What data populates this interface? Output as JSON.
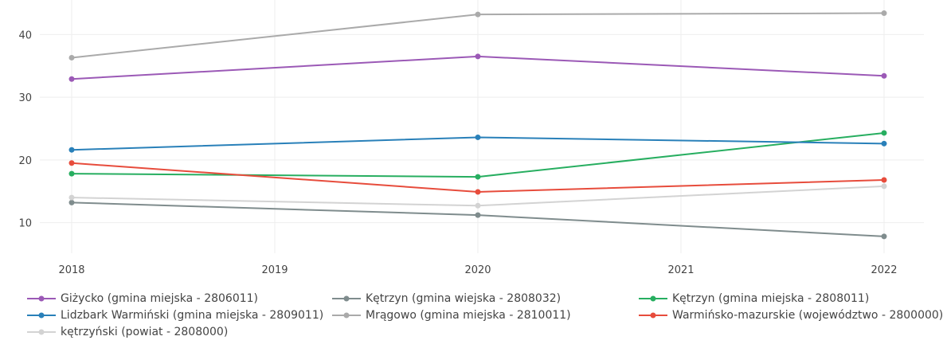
{
  "chart_data": {
    "type": "line",
    "title": "",
    "xlabel": "",
    "ylabel": "",
    "x_ticks": [
      "2018",
      "2019",
      "2020",
      "2021",
      "2022"
    ],
    "y_ticks": [
      10,
      20,
      30,
      40
    ],
    "xlim": [
      2018,
      2022
    ],
    "ylim": [
      5.5,
      45.5
    ],
    "grid": true,
    "legend_position": "bottom",
    "series": [
      {
        "name": "Giżycko (gmina miejska - 2806011)",
        "color": "#9b59b6",
        "x": [
          2018,
          2020,
          2022
        ],
        "values": [
          32.9,
          36.5,
          33.4
        ]
      },
      {
        "name": "Kętrzyn (gmina wiejska - 2808032)",
        "color": "#7f8c8d",
        "x": [
          2018,
          2020,
          2022
        ],
        "values": [
          13.2,
          11.2,
          7.8
        ]
      },
      {
        "name": "Kętrzyn (gmina miejska - 2808011)",
        "color": "#27ae60",
        "x": [
          2018,
          2020,
          2022
        ],
        "values": [
          17.8,
          17.3,
          24.3
        ]
      },
      {
        "name": "Lidzbark Warmiński (gmina miejska - 2809011)",
        "color": "#2980b9",
        "x": [
          2018,
          2020,
          2022
        ],
        "values": [
          21.6,
          23.6,
          22.6
        ]
      },
      {
        "name": "Mrągowo (gmina miejska - 2810011)",
        "color": "#aaaaaa",
        "x": [
          2018,
          2020,
          2022
        ],
        "values": [
          36.3,
          43.2,
          43.4
        ]
      },
      {
        "name": "Warmińsko-mazurskie (województwo - 2800000)",
        "color": "#e74c3c",
        "x": [
          2018,
          2020,
          2022
        ],
        "values": [
          19.5,
          14.9,
          16.8
        ]
      },
      {
        "name": "kętrzyński (powiat - 2808000)",
        "color": "#d3d3d3",
        "x": [
          2018,
          2020,
          2022
        ],
        "values": [
          14.0,
          12.7,
          15.8
        ]
      }
    ]
  }
}
